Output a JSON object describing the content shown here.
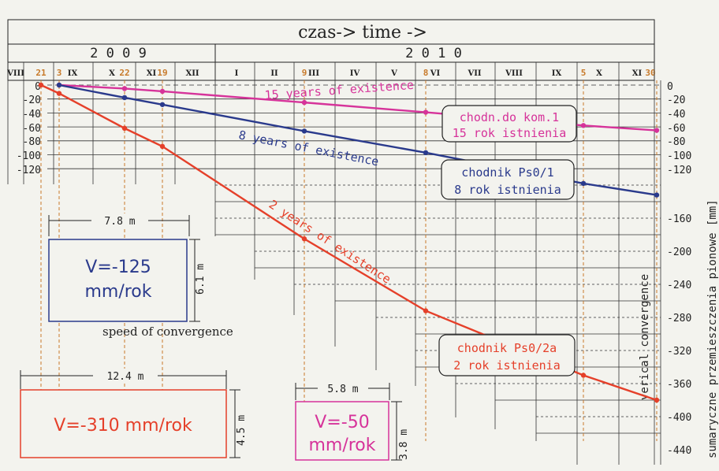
{
  "header": {
    "title": "czas-> time ->",
    "year_left": "2 0 0 9",
    "year_right": "2 0 1 0"
  },
  "colors": {
    "magenta": "#d6339a",
    "blue": "#2a3a8c",
    "red": "#e5402a",
    "orange": "#c87a2a",
    "grid": "#222222",
    "background": "#f3f3ee"
  },
  "months": [
    {
      "label": "VIII",
      "num": "21"
    },
    {
      "label": "",
      "num": "3"
    },
    {
      "label": "IX",
      "num": ""
    },
    {
      "label": "X",
      "num": "22"
    },
    {
      "label": "XI",
      "num": "19"
    },
    {
      "label": "XII",
      "num": ""
    },
    {
      "label": "I",
      "num": ""
    },
    {
      "label": "II",
      "num": ""
    },
    {
      "label": "III",
      "num": "9"
    },
    {
      "label": "IV",
      "num": ""
    },
    {
      "label": "V",
      "num": ""
    },
    {
      "label": "VI",
      "num": "8"
    },
    {
      "label": "VII",
      "num": ""
    },
    {
      "label": "VIII",
      "num": ""
    },
    {
      "label": "IX",
      "num": ""
    },
    {
      "label": "X",
      "num": "5"
    },
    {
      "label": "XI",
      "num": "30"
    }
  ],
  "left_ticks": [
    "0",
    "-20",
    "-40",
    "-60",
    "-80",
    "-100",
    "-120"
  ],
  "right_ticks": [
    "0",
    "-20",
    "-40",
    "-60",
    "-80",
    "-100",
    "-120",
    "-160",
    "-200",
    "-240",
    "-280",
    "-320",
    "-360",
    "-400",
    "-440"
  ],
  "right_axis_label": "sumaryczne przemieszczenia pionowe [mm]",
  "vertical_convergence_label": "verical convergence",
  "speed_label": "speed of convergence",
  "chart_data": {
    "type": "line",
    "title": "czas-> time ->",
    "x_dates": [
      "2009-08-21",
      "2009-09-03",
      "2009-10-22",
      "2009-11-19",
      "2010-03-09",
      "2010-06-08",
      "2010-10-05",
      "2010-11-30"
    ],
    "ylabel": "sumaryczne przemieszczenia pionowe [mm]",
    "ylim": [
      -440,
      0
    ],
    "series": [
      {
        "name": "chodn.do kom.1 15 rok istnienia",
        "line_label": "15 years of existence",
        "box_lines": [
          "chodn.do kom.1",
          "15 rok istnienia"
        ],
        "color": "#d6339a",
        "x": [
          "2009-09-03",
          "2009-10-22",
          "2009-11-19",
          "2010-03-09",
          "2010-06-08",
          "2010-10-05",
          "2010-11-30"
        ],
        "values": [
          0,
          -5,
          -9,
          -25,
          -39,
          -58,
          -65
        ]
      },
      {
        "name": "chodnik Ps0/1 8 rok istnienia",
        "line_label": "8 years of existence",
        "box_lines": [
          "chodnik Ps0/1",
          "8 rok istnienia"
        ],
        "color": "#2a3a8c",
        "x": [
          "2009-09-03",
          "2009-10-22",
          "2009-11-19",
          "2010-03-09",
          "2010-06-08",
          "2010-10-05",
          "2010-11-30"
        ],
        "values": [
          0,
          -18,
          -28,
          -66,
          -97,
          -138,
          -152
        ]
      },
      {
        "name": "chodnik Ps0/2a 2 rok istnienia",
        "line_label": "2 years of existence",
        "box_lines": [
          "chodnik Ps0/2a",
          "2 rok istnienia"
        ],
        "color": "#e5402a",
        "x": [
          "2009-08-21",
          "2009-09-03",
          "2009-10-22",
          "2009-11-19",
          "2010-03-09",
          "2010-06-08",
          "2010-10-05",
          "2010-11-30"
        ],
        "values": [
          0,
          -12,
          -62,
          -88,
          -205,
          -292,
          -370,
          -400
        ]
      }
    ]
  },
  "profiles": {
    "blue": {
      "width": "7.8 m",
      "height": "6.1 m",
      "speed_lines": [
        "V=-125",
        "mm/rok"
      ]
    },
    "red": {
      "width": "12.4 m",
      "height": "4.5 m",
      "speed_lines": [
        "V=-310 mm/rok"
      ]
    },
    "magenta": {
      "width": "5.8 m",
      "height": "3.8 m",
      "speed_lines": [
        "V=-50",
        "mm/rok"
      ]
    }
  }
}
